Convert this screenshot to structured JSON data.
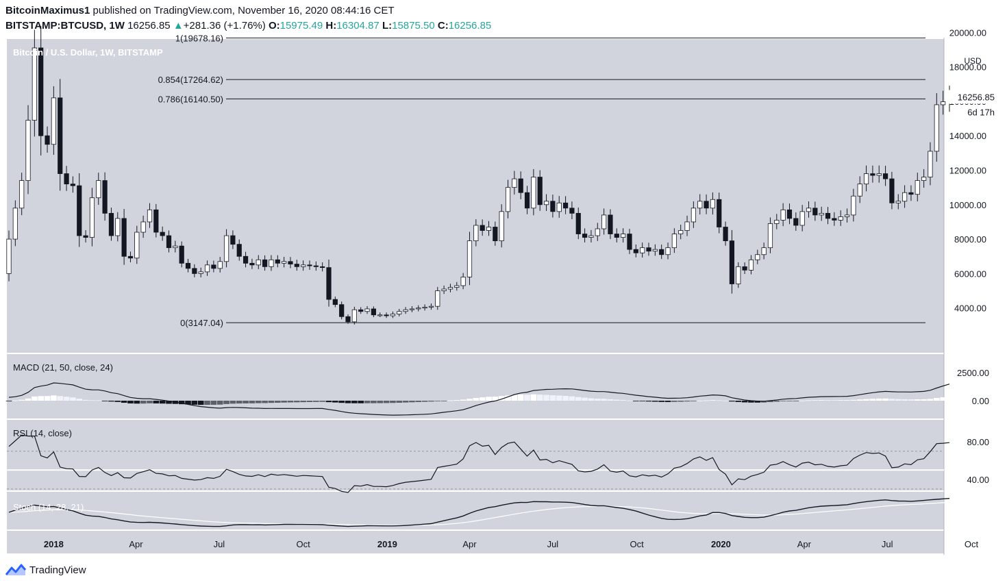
{
  "header": {
    "author": "BitcoinMaximus1",
    "published_text": "published on TradingView.com, November 16, 2020 08:44:16 CET",
    "symbol": "BITSTAMP:BTCUSD, 1W",
    "last": "16256.85",
    "change_arrow": "▲",
    "change": "+281.36 (+1.76%)",
    "open_label": "O:",
    "open": "15975.49",
    "high_label": "H:",
    "high": "16304.87",
    "low_label": "L:",
    "low": "15875.50",
    "close_label": "C:",
    "close": "16256.85"
  },
  "brand": {
    "name": "TradingView",
    "icon": "tradingview-logo-icon"
  },
  "colors": {
    "pane_bg": "#d1d4dc",
    "axis_bg": "#ffffff",
    "up_body": "#ffffff",
    "down_body": "#131722",
    "line": "#131722",
    "signal_line": "#ffffff"
  },
  "chart_data": {
    "type": "candlestick",
    "title": "Bitcoin / U.S. Dollar, 1W, BITSTAMP",
    "currency": "USD",
    "y_scale": "linear",
    "ylim": [
      2000,
      20600
    ],
    "y_ticks": [
      4000,
      6000,
      8000,
      10000,
      12000,
      14000,
      16000,
      18000,
      20000
    ],
    "y_tick_labels": [
      "4000.00",
      "6000.00",
      "8000.00",
      "10000.00",
      "12000.00",
      "14000.00",
      "16000.00",
      "18000.00",
      "20000.00"
    ],
    "x_labels": [
      {
        "label": "2018",
        "date": "2018-01-01",
        "bold": true
      },
      {
        "label": "Apr",
        "date": "2018-04-01",
        "bold": false
      },
      {
        "label": "Jul",
        "date": "2018-07-01",
        "bold": false
      },
      {
        "label": "Oct",
        "date": "2018-10-01",
        "bold": false
      },
      {
        "label": "2019",
        "date": "2019-01-01",
        "bold": true
      },
      {
        "label": "Apr",
        "date": "2019-04-01",
        "bold": false
      },
      {
        "label": "Jul",
        "date": "2019-07-01",
        "bold": false
      },
      {
        "label": "Oct",
        "date": "2019-10-01",
        "bold": false
      },
      {
        "label": "2020",
        "date": "2020-01-01",
        "bold": true
      },
      {
        "label": "Apr",
        "date": "2020-04-01",
        "bold": false
      },
      {
        "label": "Jul",
        "date": "2020-07-01",
        "bold": false
      },
      {
        "label": "Oct",
        "date": "2020-10-01",
        "bold": false
      }
    ],
    "first_bar_date": "2017-11-13",
    "weekly_closes": [
      8000,
      9800,
      11400,
      14900,
      19100,
      14000,
      13500,
      16200,
      11800,
      11200,
      11100,
      8200,
      8100,
      10400,
      11400,
      9500,
      8200,
      9200,
      7000,
      6900,
      8400,
      9000,
      9700,
      8400,
      8200,
      7500,
      7600,
      6600,
      6300,
      6000,
      6100,
      6500,
      6300,
      6700,
      8200,
      7700,
      7000,
      6600,
      6500,
      6800,
      6400,
      6800,
      6600,
      6700,
      6550,
      6400,
      6500,
      6450,
      6400,
      6350,
      4500,
      4200,
      3500,
      3200,
      3900,
      3800,
      3950,
      3600,
      3600,
      3550,
      3650,
      3800,
      3900,
      3950,
      4000,
      4050,
      4100,
      5000,
      5100,
      5200,
      5300,
      5800,
      7900,
      8800,
      8500,
      8700,
      7900,
      9600,
      11000,
      11500,
      10700,
      9800,
      11600,
      10000,
      10200,
      9600,
      10100,
      9800,
      9500,
      8300,
      8100,
      8200,
      8600,
      9400,
      8300,
      8100,
      8300,
      7400,
      7200,
      7500,
      7300,
      7400,
      7100,
      7500,
      8300,
      8500,
      9000,
      9800,
      10200,
      9800,
      10300,
      8700,
      7900,
      5400,
      6400,
      6200,
      6800,
      7100,
      7500,
      8900,
      9100,
      9700,
      9200,
      8800,
      9600,
      9800,
      9400,
      9500,
      9200,
      9100,
      9300,
      9400,
      10500,
      11200,
      11800,
      11700,
      11800,
      11500,
      10100,
      10200,
      10700,
      10600,
      11400,
      11600,
      13100,
      15800,
      15975,
      16256.85
    ],
    "fib_levels": [
      {
        "level": "1",
        "value": 19678.16,
        "label": "1(19678.16)"
      },
      {
        "level": "0.854",
        "value": 17264.62,
        "label": "0.854(17264.62)"
      },
      {
        "level": "0.786",
        "value": 16140.5,
        "label": "0.786(16140.50)"
      },
      {
        "level": "0",
        "value": 3147.04,
        "label": "0(3147.04)"
      }
    ],
    "last_price_label": "16256.85",
    "countdown_label": "6d 17h",
    "grid": false,
    "macd": {
      "title": "MACD (21, 50, close, 24)",
      "ylim": [
        -600,
        2800
      ],
      "y_ticks": [
        0,
        2500
      ],
      "y_tick_labels": [
        "0.00",
        "2500.00"
      ]
    },
    "rsi": {
      "title": "RSI (14, close)",
      "ylim": [
        20,
        90
      ],
      "y_ticks": [
        40,
        80
      ],
      "y_tick_labels": [
        "40.00",
        "80.00"
      ],
      "bands": [
        30,
        50,
        70
      ]
    },
    "stoch": {
      "title": "Stoch (14, 28, 21)"
    }
  }
}
